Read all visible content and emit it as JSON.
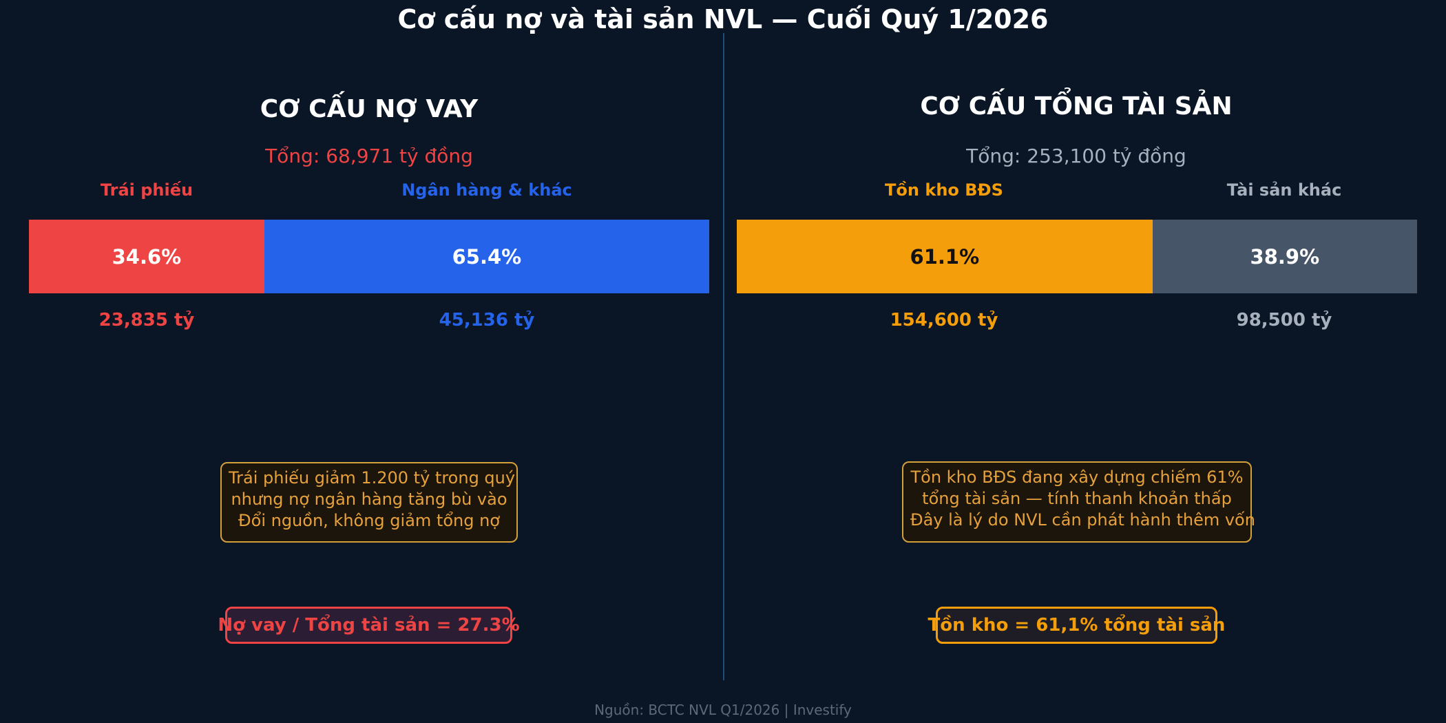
{
  "title": "Cơ cấu nợ và tài sản NVL — Cuối Quý 1/2026",
  "footer": "Nguồn: BCTC NVL Q1/2026  |  Investify",
  "colors": {
    "background": "#0a1526",
    "bond": "#ef4444",
    "bank": "#2563eb",
    "inventory": "#f59e0b",
    "other_assets": "#475569",
    "note_border": "#d4a03a",
    "note_text": "#e6a13c"
  },
  "chart_data": [
    {
      "type": "bar",
      "stacked": "horizontal-100%",
      "title": "CƠ CẤU NỢ VAY",
      "total_label": "Tổng: 68,971 tỷ đồng",
      "segments": [
        {
          "name": "Trái phiếu",
          "percent": 34.6,
          "percent_label": "34.6%",
          "value_label": "23,835 tỷ",
          "color": "#ef4444"
        },
        {
          "name": "Ngân hàng & khác",
          "percent": 65.4,
          "percent_label": "65.4%",
          "value_label": "45,136 tỷ",
          "color": "#2563eb"
        }
      ],
      "note_lines": [
        "Trái phiếu giảm 1.200 tỷ trong quý",
        "nhưng nợ ngân hàng tăng bù vào",
        "Đổi nguồn, không giảm tổng nợ"
      ],
      "ratio_label": "Nợ vay / Tổng tài sản = 27.3%"
    },
    {
      "type": "bar",
      "stacked": "horizontal-100%",
      "title": "CƠ CẤU TỔNG TÀI SẢN",
      "total_label": "Tổng: 253,100 tỷ đồng",
      "segments": [
        {
          "name": "Tồn kho BĐS",
          "percent": 61.1,
          "percent_label": "61.1%",
          "value_label": "154,600 tỷ",
          "color": "#f59e0b"
        },
        {
          "name": "Tài sản khác",
          "percent": 38.9,
          "percent_label": "38.9%",
          "value_label": "98,500 tỷ",
          "color": "#475569"
        }
      ],
      "note_lines": [
        "Tồn kho BĐS đang xây dựng chiếm 61%",
        "tổng tài sản — tính thanh khoản thấp",
        "Đây là lý do NVL cần phát hành thêm vốn"
      ],
      "ratio_label": "Tồn kho = 61,1% tổng tài sản"
    }
  ]
}
